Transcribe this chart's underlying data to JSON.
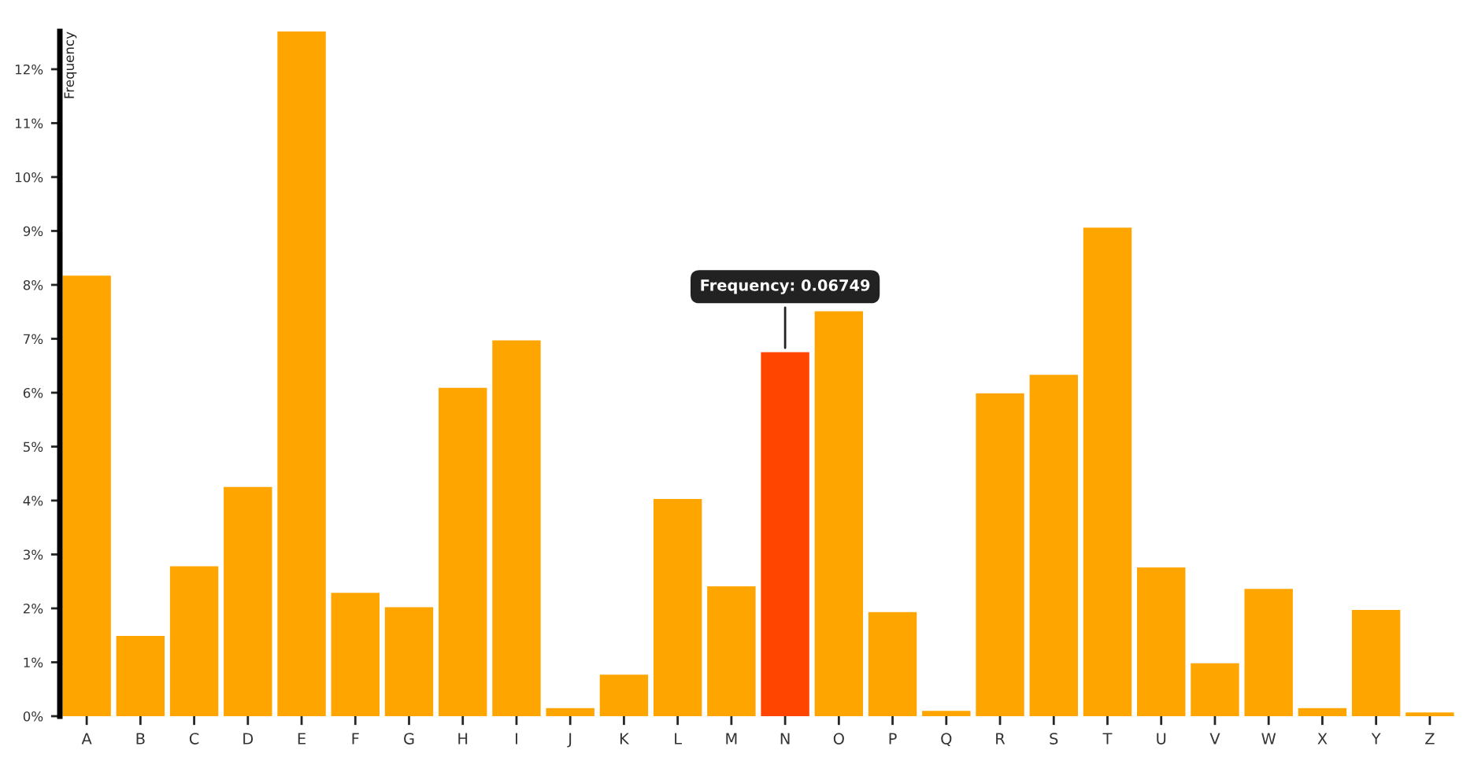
{
  "chart_data": {
    "type": "bar",
    "ylabel": "Frequency",
    "categories": [
      "A",
      "B",
      "C",
      "D",
      "E",
      "F",
      "G",
      "H",
      "I",
      "J",
      "K",
      "L",
      "M",
      "N",
      "O",
      "P",
      "Q",
      "R",
      "S",
      "T",
      "U",
      "V",
      "W",
      "X",
      "Y",
      "Z"
    ],
    "values": [
      8.17,
      1.49,
      2.78,
      4.25,
      12.7,
      2.29,
      2.02,
      6.09,
      6.97,
      0.15,
      0.77,
      4.03,
      2.41,
      6.75,
      7.51,
      1.93,
      0.1,
      5.99,
      6.33,
      9.06,
      2.76,
      0.98,
      2.36,
      0.15,
      1.97,
      0.07
    ],
    "colors": [
      "#ffa500",
      "#ffa500",
      "#ffa500",
      "#ffa500",
      "#ffa500",
      "#ffa500",
      "#ffa500",
      "#ffa500",
      "#ffa500",
      "#ffa500",
      "#ffa500",
      "#ffa500",
      "#ffa500",
      "#ff4500",
      "#ffa500",
      "#ffa500",
      "#ffa500",
      "#ffa500",
      "#ffa500",
      "#ffa500",
      "#ffa500",
      "#ffa500",
      "#ffa500",
      "#ffa500",
      "#ffa500",
      "#ffa500"
    ],
    "ylim": [
      0,
      12.7
    ],
    "yticks": [
      {
        "value": 0,
        "label": "0%"
      },
      {
        "value": 1,
        "label": "1%"
      },
      {
        "value": 2,
        "label": "2%"
      },
      {
        "value": 3,
        "label": "3%"
      },
      {
        "value": 4,
        "label": "4%"
      },
      {
        "value": 5,
        "label": "5%"
      },
      {
        "value": 6,
        "label": "6%"
      },
      {
        "value": 7,
        "label": "7%"
      },
      {
        "value": 8,
        "label": "8%"
      },
      {
        "value": 9,
        "label": "9%"
      },
      {
        "value": 10,
        "label": "10%"
      },
      {
        "value": 11,
        "label": "11%"
      },
      {
        "value": 12,
        "label": "12%"
      }
    ],
    "annotations": [
      {
        "text": "Frequency: 0.06749",
        "x": "N",
        "y": 6.75
      }
    ],
    "grid": false,
    "legend": false
  }
}
